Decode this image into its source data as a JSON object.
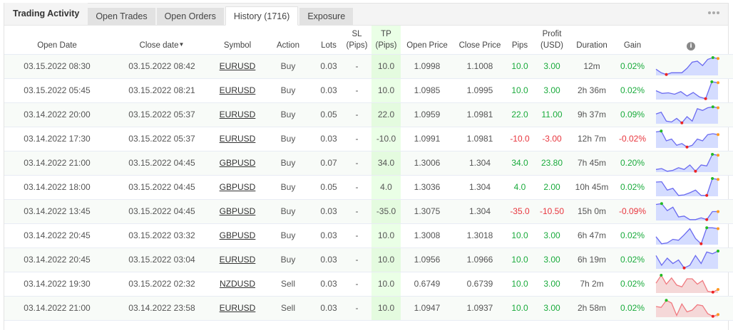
{
  "tabs": {
    "title": "Trading Activity",
    "items": [
      {
        "label": "Open Trades",
        "active": false
      },
      {
        "label": "Open Orders",
        "active": false
      },
      {
        "label": "History (1716)",
        "active": true
      },
      {
        "label": "Exposure",
        "active": false
      }
    ],
    "more_icon": "ellipsis-icon"
  },
  "columns": {
    "open_date": "Open Date",
    "close_date": "Close date",
    "close_date_sort": "▼",
    "symbol": "Symbol",
    "action": "Action",
    "lots": "Lots",
    "sl_1": "SL",
    "sl_2": "(Pips)",
    "tp_1": "TP",
    "tp_2": "(Pips)",
    "open_price": "Open Price",
    "close_price": "Close Price",
    "pips": "Pips",
    "profit_1": "Profit",
    "profit_2": "(USD)",
    "duration": "Duration",
    "gain": "Gain",
    "info_icon": "i"
  },
  "colors": {
    "positive": "#1aab3c",
    "negative": "#e8363e",
    "tp_highlight": "#eaffe6",
    "spark_buy_line": "#6a6af0",
    "spark_buy_fill": "#d4dcff",
    "spark_sell_line": "#f07a80",
    "spark_sell_fill": "#f5d8d8",
    "marker_high": "#22bb22",
    "marker_low": "#ee2222",
    "marker_close": "#ff9922"
  },
  "rows": [
    {
      "open_date": "03.15.2022 08:30",
      "close_date": "03.15.2022 08:42",
      "symbol": "EURUSD",
      "action": "Buy",
      "lots": "0.03",
      "sl": "-",
      "tp": "10.0",
      "open_price": "1.0998",
      "close_price": "1.1008",
      "pips": "10.0",
      "profit": "3.00",
      "duration": "12m",
      "gain": "0.02%",
      "positive": true,
      "spark": {
        "points": [
          0.35,
          0.15,
          0.05,
          0.15,
          0.15,
          0.15,
          0.4,
          0.75,
          0.8,
          0.55,
          0.9,
          1.0,
          0.95
        ],
        "high": 11,
        "low": 2,
        "close": 12
      }
    },
    {
      "open_date": "03.15.2022 05:45",
      "close_date": "03.15.2022 08:21",
      "symbol": "EURUSD",
      "action": "Buy",
      "lots": "0.03",
      "sl": "-",
      "tp": "10.0",
      "open_price": "1.0985",
      "close_price": "1.0995",
      "pips": "10.0",
      "profit": "3.00",
      "duration": "2h 36m",
      "gain": "0.02%",
      "positive": true,
      "spark": {
        "points": [
          0.5,
          0.35,
          0.38,
          0.3,
          0.45,
          0.2,
          0.4,
          0.15,
          0.05,
          1.0,
          0.95
        ],
        "high": 9,
        "low": 8,
        "close": 10
      }
    },
    {
      "open_date": "03.14.2022 20:00",
      "close_date": "03.15.2022 05:37",
      "symbol": "EURUSD",
      "action": "Buy",
      "lots": "0.05",
      "sl": "-",
      "tp": "22.0",
      "open_price": "1.0959",
      "close_price": "1.0981",
      "pips": "22.0",
      "profit": "11.00",
      "duration": "9h 37m",
      "gain": "0.09%",
      "positive": true,
      "spark": {
        "points": [
          0.55,
          0.65,
          0.15,
          0.1,
          0.3,
          0.05,
          0.4,
          0.15,
          0.85,
          0.75,
          0.9,
          0.95,
          0.9
        ],
        "high": 11,
        "low": 5,
        "close": 12
      }
    },
    {
      "open_date": "03.14.2022 17:30",
      "close_date": "03.15.2022 05:37",
      "symbol": "EURUSD",
      "action": "Buy",
      "lots": "0.03",
      "sl": "-",
      "tp": "-10.0",
      "open_price": "1.0991",
      "close_price": "1.0981",
      "pips": "-10.0",
      "profit": "-3.00",
      "duration": "12h 7m",
      "gain": "-0.02%",
      "positive": false,
      "spark": {
        "points": [
          0.9,
          0.95,
          0.4,
          0.5,
          0.15,
          0.25,
          0.05,
          0.15,
          0.5,
          0.4,
          0.75,
          0.8,
          0.75
        ],
        "high": 1,
        "low": 6,
        "close": 12
      }
    },
    {
      "open_date": "03.14.2022 21:00",
      "close_date": "03.15.2022 04:45",
      "symbol": "GBPUSD",
      "action": "Buy",
      "lots": "0.07",
      "sl": "-",
      "tp": "34.0",
      "open_price": "1.3006",
      "close_price": "1.304",
      "pips": "34.0",
      "profit": "23.80",
      "duration": "7h 45m",
      "gain": "0.20%",
      "positive": true,
      "spark": {
        "points": [
          0.15,
          0.2,
          0.05,
          0.1,
          0.25,
          0.15,
          0.4,
          0.05,
          0.4,
          0.35,
          1.0,
          0.95
        ],
        "high": 10,
        "low": 7,
        "close": 11
      }
    },
    {
      "open_date": "03.14.2022 18:00",
      "close_date": "03.15.2022 04:45",
      "symbol": "GBPUSD",
      "action": "Buy",
      "lots": "0.05",
      "sl": "-",
      "tp": "4.0",
      "open_price": "1.3036",
      "close_price": "1.304",
      "pips": "4.0",
      "profit": "2.00",
      "duration": "10h 45m",
      "gain": "0.02%",
      "positive": true,
      "spark": {
        "points": [
          0.8,
          0.82,
          0.35,
          0.45,
          0.05,
          0.08,
          0.2,
          0.35,
          0.05,
          0.05,
          1.0,
          0.95
        ],
        "high": 10,
        "low": 9,
        "close": 11
      }
    },
    {
      "open_date": "03.14.2022 13:45",
      "close_date": "03.15.2022 04:45",
      "symbol": "GBPUSD",
      "action": "Buy",
      "lots": "0.03",
      "sl": "-",
      "tp": "-35.0",
      "open_price": "1.3075",
      "close_price": "1.304",
      "pips": "-35.0",
      "profit": "-10.50",
      "duration": "15h 0m",
      "gain": "-0.09%",
      "positive": false,
      "spark": {
        "points": [
          0.9,
          0.95,
          0.55,
          0.75,
          0.2,
          0.25,
          0.05,
          0.05,
          0.15,
          0.05,
          0.5,
          0.5
        ],
        "high": 1,
        "low": 9,
        "close": 11
      }
    },
    {
      "open_date": "03.14.2022 20:45",
      "close_date": "03.15.2022 03:32",
      "symbol": "GBPUSD",
      "action": "Buy",
      "lots": "0.03",
      "sl": "-",
      "tp": "10.0",
      "open_price": "1.3008",
      "close_price": "1.3018",
      "pips": "10.0",
      "profit": "3.00",
      "duration": "6h 47m",
      "gain": "0.02%",
      "positive": true,
      "spark": {
        "points": [
          0.45,
          0.05,
          0.1,
          0.3,
          0.25,
          0.55,
          0.9,
          0.35,
          0.05,
          0.95,
          0.95,
          0.9
        ],
        "high": 9,
        "low": 8,
        "close": 11
      }
    },
    {
      "open_date": "03.14.2022 20:45",
      "close_date": "03.15.2022 03:04",
      "symbol": "EURUSD",
      "action": "Buy",
      "lots": "0.03",
      "sl": "-",
      "tp": "10.0",
      "open_price": "1.0956",
      "close_price": "1.0966",
      "pips": "10.0",
      "profit": "3.00",
      "duration": "6h 19m",
      "gain": "0.02%",
      "positive": true,
      "spark": {
        "points": [
          0.75,
          0.2,
          0.6,
          0.3,
          0.5,
          0.05,
          0.2,
          0.75,
          0.3,
          0.95,
          0.85,
          1.0
        ],
        "high": 11,
        "low": 5,
        "close": 11
      }
    },
    {
      "open_date": "03.14.2022 19:30",
      "close_date": "03.15.2022 02:32",
      "symbol": "NZDUSD",
      "action": "Sell",
      "lots": "0.03",
      "sl": "-",
      "tp": "10.0",
      "open_price": "0.6749",
      "close_price": "0.6739",
      "pips": "10.0",
      "profit": "3.00",
      "duration": "7h 2m",
      "gain": "0.02%",
      "positive": true,
      "spark": {
        "points": [
          0.55,
          1.0,
          0.5,
          0.85,
          0.45,
          0.35,
          0.8,
          0.8,
          0.5,
          0.7,
          0.1,
          0.05,
          0.2
        ],
        "high": 1,
        "low": 11,
        "close": 12
      }
    },
    {
      "open_date": "03.14.2022 21:00",
      "close_date": "03.14.2022 23:58",
      "symbol": "EURUSD",
      "action": "Sell",
      "lots": "0.03",
      "sl": "-",
      "tp": "10.0",
      "open_price": "1.0947",
      "close_price": "1.0937",
      "pips": "10.0",
      "profit": "3.00",
      "duration": "2h 58m",
      "gain": "0.02%",
      "positive": true,
      "spark": {
        "points": [
          0.6,
          0.55,
          0.95,
          0.8,
          0.1,
          0.75,
          0.3,
          0.4,
          0.7,
          0.65,
          0.2,
          0.05,
          0.15
        ],
        "high": 2,
        "low": 11,
        "close": 12
      }
    }
  ]
}
